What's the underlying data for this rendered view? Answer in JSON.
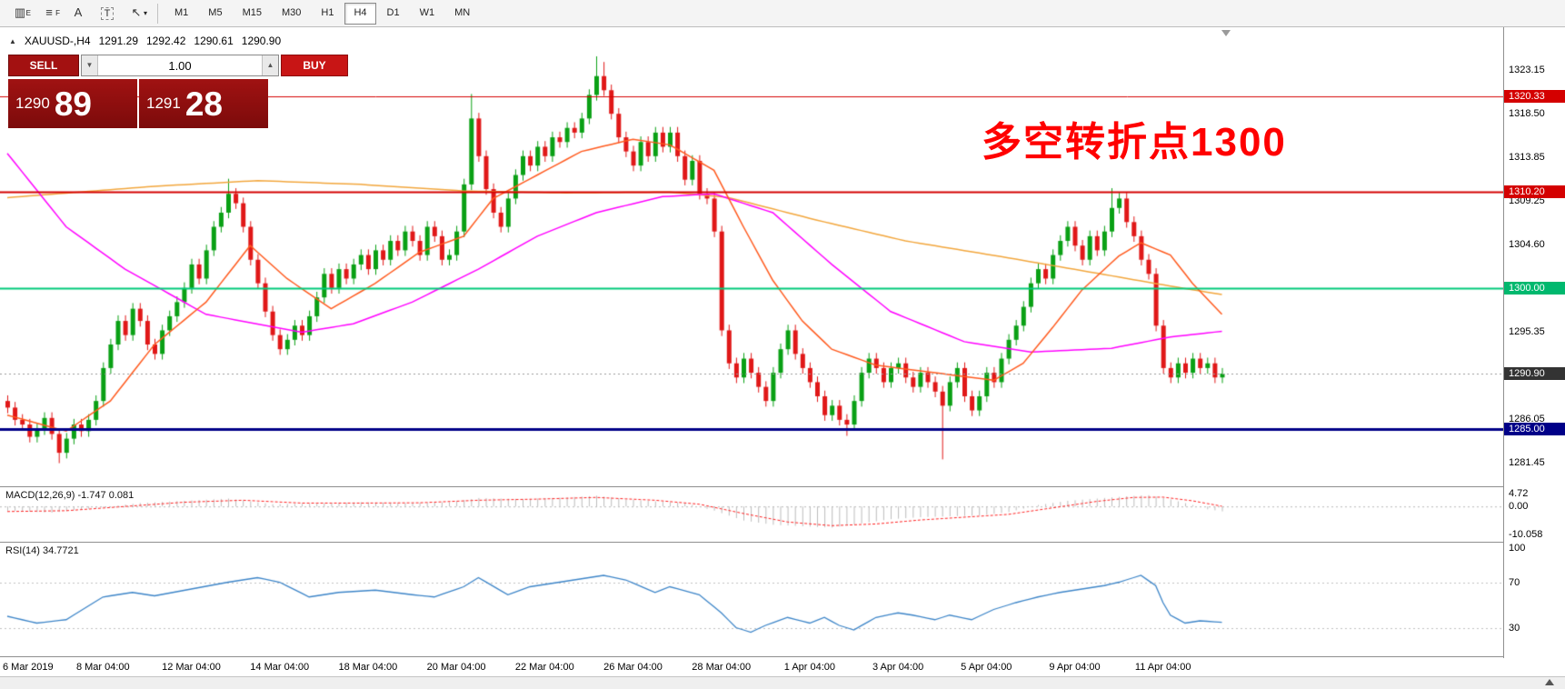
{
  "toolbar": {
    "icons": [
      {
        "name": "candlestick-template-icon",
        "glyph": "▥",
        "sub": "E"
      },
      {
        "name": "indicator-list-icon",
        "glyph": "≡",
        "sub": "F"
      },
      {
        "name": "font-tool-icon",
        "glyph": "A",
        "sub": ""
      },
      {
        "name": "text-box-tool-icon",
        "glyph": "T",
        "sub": ""
      },
      {
        "name": "cursor-tool-icon",
        "glyph": "↖",
        "sub": "▾"
      }
    ],
    "timeframes": [
      "M1",
      "M5",
      "M15",
      "M30",
      "H1",
      "H4",
      "D1",
      "W1",
      "MN"
    ],
    "active_timeframe": "H4"
  },
  "header": {
    "collapse_glyph": "▲",
    "symbol": "XAUUSD-,H4",
    "open": "1291.29",
    "high": "1292.42",
    "low": "1290.61",
    "close": "1290.90"
  },
  "trade": {
    "sell_label": "SELL",
    "buy_label": "BUY",
    "volume": "1.00",
    "vol_down_glyph": "▼",
    "vol_up_glyph": "▲",
    "sell_price": {
      "main": "1290",
      "pips": "89"
    },
    "buy_price": {
      "main": "1291",
      "pips": "28"
    }
  },
  "annotation": {
    "text": "多空转折点1300",
    "color": "#ff0000"
  },
  "price_axis": {
    "labels": [
      {
        "text": "1323.15",
        "value": 1323.15
      },
      {
        "text": "1318.50",
        "value": 1318.5
      },
      {
        "text": "1313.85",
        "value": 1313.85
      },
      {
        "text": "1309.25",
        "value": 1309.25
      },
      {
        "text": "1304.60",
        "value": 1304.6
      },
      {
        "text": "1295.35",
        "value": 1295.35
      },
      {
        "text": "1286.05",
        "value": 1286.05
      },
      {
        "text": "1281.45",
        "value": 1281.45
      }
    ]
  },
  "indicators": {
    "macd": {
      "label": "MACD(12,26,9) -1.747 0.081",
      "axis_labels": [
        {
          "text": "4.72",
          "value": 4.72
        },
        {
          "text": "0.00",
          "value": 0
        },
        {
          "text": "-10.058",
          "value": -10.058
        }
      ]
    },
    "rsi": {
      "label": "RSI(14) 34.7721",
      "axis_labels": [
        {
          "text": "100",
          "value": 100
        },
        {
          "text": "70",
          "value": 70
        },
        {
          "text": "30",
          "value": 30
        }
      ]
    }
  },
  "date_axis": [
    {
      "text": "6 Mar 2019",
      "idx": 0
    },
    {
      "text": "8 Mar 04:00",
      "idx": 13
    },
    {
      "text": "12 Mar 04:00",
      "idx": 25
    },
    {
      "text": "14 Mar 04:00",
      "idx": 37
    },
    {
      "text": "18 Mar 04:00",
      "idx": 49
    },
    {
      "text": "20 Mar 04:00",
      "idx": 61
    },
    {
      "text": "22 Mar 04:00",
      "idx": 73
    },
    {
      "text": "26 Mar 04:00",
      "idx": 85
    },
    {
      "text": "28 Mar 04:00",
      "idx": 97
    },
    {
      "text": "1 Apr 04:00",
      "idx": 109
    },
    {
      "text": "3 Apr 04:00",
      "idx": 121
    },
    {
      "text": "5 Apr 04:00",
      "idx": 133
    },
    {
      "text": "9 Apr 04:00",
      "idx": 145
    },
    {
      "text": "11 Apr 04:00",
      "idx": 157
    }
  ],
  "chart_data": {
    "type": "candlestick",
    "symbol": "XAUUSD",
    "timeframe": "H4",
    "x_range": {
      "start": "6 Mar 2019",
      "end": "12 Apr 2019"
    },
    "ylim": [
      1281.45,
      1323.15
    ],
    "up_color": "#0aa015",
    "down_color": "#e01818",
    "first_open": 1288.0,
    "default_wick": 0.6,
    "closes": [
      1287.3,
      1286.0,
      1285.5,
      1284.2,
      1285.0,
      1286.2,
      1284.5,
      1282.5,
      1284.0,
      1285.5,
      1284.8,
      1286.0,
      1288.0,
      1291.5,
      1294.0,
      1296.5,
      1295.0,
      1297.8,
      1296.5,
      1294.0,
      1293.0,
      1295.5,
      1297.0,
      1298.5,
      1300.0,
      1302.5,
      1301.0,
      1304.0,
      1306.5,
      1308.0,
      1310.0,
      1309.0,
      1306.5,
      1303.0,
      1300.5,
      1297.5,
      1295.0,
      1293.5,
      1294.5,
      1296.0,
      1295.0,
      1297.0,
      1299.0,
      1301.5,
      1300.0,
      1302.0,
      1301.0,
      1302.5,
      1303.5,
      1302.0,
      1304.0,
      1303.0,
      1305.0,
      1304.0,
      1306.0,
      1305.0,
      1303.5,
      1306.5,
      1305.5,
      1303.0,
      1303.5,
      1306.0,
      1311.0,
      1318.0,
      1314.0,
      1310.5,
      1308.0,
      1306.5,
      1309.5,
      1312.0,
      1314.0,
      1313.0,
      1315.0,
      1314.0,
      1316.0,
      1315.5,
      1317.0,
      1316.5,
      1318.0,
      1320.5,
      1322.5,
      1321.0,
      1318.5,
      1316.0,
      1314.5,
      1313.0,
      1315.5,
      1314.0,
      1316.5,
      1315.0,
      1316.5,
      1314.0,
      1311.5,
      1313.5,
      1310.0,
      1309.5,
      1306.0,
      1295.5,
      1292.0,
      1290.5,
      1292.5,
      1291.0,
      1289.5,
      1288.0,
      1291.0,
      1293.5,
      1295.5,
      1293.0,
      1291.5,
      1290.0,
      1288.5,
      1286.5,
      1287.5,
      1286.0,
      1285.5,
      1288.0,
      1291.0,
      1292.5,
      1291.5,
      1290.0,
      1291.5,
      1292.0,
      1290.5,
      1289.5,
      1291.0,
      1290.0,
      1289.0,
      1287.5,
      1290.0,
      1291.5,
      1288.5,
      1287.0,
      1288.5,
      1291.0,
      1290.0,
      1292.5,
      1294.5,
      1296.0,
      1298.0,
      1300.5,
      1302.0,
      1301.0,
      1303.5,
      1305.0,
      1306.5,
      1304.5,
      1303.0,
      1305.5,
      1304.0,
      1306.0,
      1308.5,
      1309.5,
      1307.0,
      1305.5,
      1303.0,
      1301.5,
      1296.0,
      1291.5,
      1290.5,
      1292.0,
      1291.0,
      1292.5,
      1291.5,
      1292.0,
      1290.5,
      1290.9
    ],
    "wick_overrides": {
      "7": {
        "low": 1281.4
      },
      "30": {
        "high": 1311.6
      },
      "63": {
        "high": 1320.6
      },
      "80": {
        "high": 1324.6
      },
      "81": {
        "high": 1324.0
      },
      "114": {
        "low": 1284.3
      },
      "127": {
        "low": 1281.8
      },
      "150": {
        "high": 1310.6
      }
    },
    "moving_averages": [
      {
        "name": "slow-ma",
        "color": "#f2a63c",
        "points": [
          [
            0,
            1309.6
          ],
          [
            20,
            1310.8
          ],
          [
            34,
            1311.4
          ],
          [
            48,
            1311.0
          ],
          [
            62,
            1310.3
          ],
          [
            76,
            1310.1
          ],
          [
            90,
            1310.2
          ],
          [
            98,
            1309.6
          ],
          [
            110,
            1307.2
          ],
          [
            122,
            1305.0
          ],
          [
            136,
            1303.2
          ],
          [
            150,
            1301.3
          ],
          [
            158,
            1300.2
          ],
          [
            165,
            1299.3
          ]
        ]
      },
      {
        "name": "medium-ma",
        "color": "#ff00ff",
        "points": [
          [
            0,
            1314.3
          ],
          [
            8,
            1306.5
          ],
          [
            16,
            1302.0
          ],
          [
            27,
            1297.2
          ],
          [
            40,
            1295.3
          ],
          [
            47,
            1296.2
          ],
          [
            55,
            1298.5
          ],
          [
            64,
            1302.0
          ],
          [
            72,
            1305.5
          ],
          [
            80,
            1308.0
          ],
          [
            89,
            1309.7
          ],
          [
            96,
            1310.0
          ],
          [
            104,
            1308.0
          ],
          [
            112,
            1302.5
          ],
          [
            120,
            1297.5
          ],
          [
            130,
            1294.3
          ],
          [
            139,
            1293.2
          ],
          [
            150,
            1293.6
          ],
          [
            158,
            1294.8
          ],
          [
            165,
            1295.4
          ]
        ]
      },
      {
        "name": "fast-ma",
        "color": "#ff5a1e",
        "points": [
          [
            0,
            1286.5
          ],
          [
            8,
            1284.8
          ],
          [
            14,
            1288.0
          ],
          [
            20,
            1294.0
          ],
          [
            27,
            1298.5
          ],
          [
            33,
            1304.5
          ],
          [
            38,
            1301.0
          ],
          [
            44,
            1297.8
          ],
          [
            50,
            1300.5
          ],
          [
            56,
            1303.8
          ],
          [
            62,
            1305.5
          ],
          [
            66,
            1309.5
          ],
          [
            72,
            1312.0
          ],
          [
            78,
            1314.5
          ],
          [
            85,
            1315.8
          ],
          [
            90,
            1315.2
          ],
          [
            96,
            1312.5
          ],
          [
            100,
            1306.5
          ],
          [
            104,
            1300.8
          ],
          [
            108,
            1296.5
          ],
          [
            112,
            1293.5
          ],
          [
            118,
            1291.8
          ],
          [
            124,
            1291.2
          ],
          [
            130,
            1290.6
          ],
          [
            134,
            1290.2
          ],
          [
            138,
            1292.0
          ],
          [
            142,
            1295.8
          ],
          [
            146,
            1299.8
          ],
          [
            151,
            1303.4
          ],
          [
            154,
            1304.8
          ],
          [
            158,
            1303.5
          ],
          [
            161,
            1300.5
          ],
          [
            165,
            1297.2
          ]
        ]
      }
    ],
    "hlines": [
      {
        "price": 1320.33,
        "color": "#d40000",
        "width": 1,
        "style": "solid",
        "badge": "1320.33",
        "badge_bg": "#d40000"
      },
      {
        "price": 1310.2,
        "color": "#d40000",
        "width": 2,
        "style": "solid",
        "badge": "1310.20",
        "badge_bg": "#d40000"
      },
      {
        "price": 1300.0,
        "color": "#00c87a",
        "width": 2,
        "style": "solid",
        "badge": "1300.00",
        "badge_bg": "#00b86e"
      },
      {
        "price": 1285.0,
        "color": "#000088",
        "width": 3,
        "style": "solid",
        "badge": "1285.00",
        "badge_bg": "#000088"
      },
      {
        "price": 1290.9,
        "color": "#9a9a9a",
        "width": 1,
        "style": "dot",
        "badge": "1290.90",
        "badge_bg": "#333333"
      }
    ],
    "macd": {
      "params": [
        12,
        26,
        9
      ],
      "current_main": -1.747,
      "current_signal": 0.081,
      "ylim": [
        -12.5,
        6.5
      ],
      "hist_color": "#bcbcbc",
      "signal_color": "#ff2020",
      "hist": [
        [
          0,
          -1.5
        ],
        [
          6,
          -2.2
        ],
        [
          12,
          -0.5
        ],
        [
          18,
          1.2
        ],
        [
          24,
          2.0
        ],
        [
          30,
          2.8
        ],
        [
          36,
          0.8
        ],
        [
          42,
          1.0
        ],
        [
          48,
          1.5
        ],
        [
          54,
          1.2
        ],
        [
          60,
          1.5
        ],
        [
          64,
          3.0
        ],
        [
          70,
          2.6
        ],
        [
          76,
          3.2
        ],
        [
          80,
          3.8
        ],
        [
          84,
          2.5
        ],
        [
          88,
          1.8
        ],
        [
          92,
          1.2
        ],
        [
          96,
          -1.5
        ],
        [
          100,
          -5.0
        ],
        [
          104,
          -6.5
        ],
        [
          108,
          -7.0
        ],
        [
          112,
          -7.5
        ],
        [
          116,
          -6.0
        ],
        [
          120,
          -4.5
        ],
        [
          124,
          -3.8
        ],
        [
          128,
          -3.5
        ],
        [
          132,
          -3.2
        ],
        [
          136,
          -2.0
        ],
        [
          140,
          0.5
        ],
        [
          144,
          2.0
        ],
        [
          148,
          2.8
        ],
        [
          152,
          3.6
        ],
        [
          155,
          4.0
        ],
        [
          158,
          2.5
        ],
        [
          161,
          0.5
        ],
        [
          163,
          -1.0
        ],
        [
          165,
          -1.747
        ]
      ],
      "signal": [
        [
          0,
          -1.8
        ],
        [
          8,
          -1.5
        ],
        [
          16,
          0.0
        ],
        [
          24,
          1.5
        ],
        [
          32,
          2.2
        ],
        [
          40,
          1.2
        ],
        [
          48,
          1.2
        ],
        [
          56,
          1.3
        ],
        [
          64,
          2.2
        ],
        [
          72,
          2.6
        ],
        [
          80,
          3.2
        ],
        [
          88,
          2.2
        ],
        [
          94,
          0.8
        ],
        [
          100,
          -2.5
        ],
        [
          106,
          -5.5
        ],
        [
          112,
          -6.8
        ],
        [
          118,
          -6.2
        ],
        [
          124,
          -4.8
        ],
        [
          130,
          -3.8
        ],
        [
          136,
          -2.8
        ],
        [
          142,
          -0.5
        ],
        [
          148,
          1.8
        ],
        [
          153,
          3.2
        ],
        [
          157,
          3.3
        ],
        [
          161,
          2.0
        ],
        [
          165,
          0.081
        ]
      ]
    },
    "rsi": {
      "period": 14,
      "current": 34.7721,
      "levels": [
        70,
        30
      ],
      "color": "#3d85c8",
      "ylim": [
        5,
        104
      ],
      "points": [
        [
          0,
          40
        ],
        [
          4,
          34
        ],
        [
          8,
          37
        ],
        [
          13,
          57
        ],
        [
          17,
          61
        ],
        [
          20,
          58
        ],
        [
          25,
          64
        ],
        [
          30,
          70
        ],
        [
          34,
          74
        ],
        [
          37,
          70
        ],
        [
          41,
          57
        ],
        [
          45,
          61
        ],
        [
          50,
          63
        ],
        [
          55,
          59
        ],
        [
          58,
          57
        ],
        [
          62,
          66
        ],
        [
          64,
          74
        ],
        [
          68,
          59
        ],
        [
          71,
          66
        ],
        [
          75,
          70
        ],
        [
          81,
          76
        ],
        [
          84,
          72
        ],
        [
          88,
          61
        ],
        [
          90,
          66
        ],
        [
          94,
          59
        ],
        [
          97,
          43
        ],
        [
          99,
          30
        ],
        [
          101,
          26
        ],
        [
          103,
          32
        ],
        [
          106,
          39
        ],
        [
          109,
          34
        ],
        [
          111,
          39
        ],
        [
          113,
          32
        ],
        [
          115,
          28
        ],
        [
          118,
          39
        ],
        [
          121,
          43
        ],
        [
          123,
          41
        ],
        [
          126,
          37
        ],
        [
          128,
          41
        ],
        [
          131,
          37
        ],
        [
          134,
          46
        ],
        [
          137,
          52
        ],
        [
          140,
          57
        ],
        [
          143,
          61
        ],
        [
          146,
          64
        ],
        [
          149,
          67
        ],
        [
          151,
          70
        ],
        [
          153,
          74
        ],
        [
          154,
          76
        ],
        [
          156,
          67
        ],
        [
          157,
          52
        ],
        [
          158,
          41
        ],
        [
          160,
          34
        ],
        [
          162,
          36
        ],
        [
          165,
          34.77
        ]
      ]
    }
  }
}
